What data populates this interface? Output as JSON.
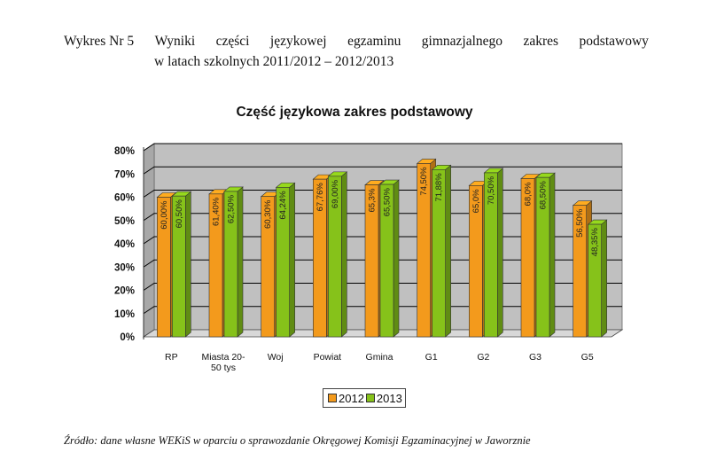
{
  "header": {
    "prefix": "Wykres Nr 5",
    "line1_words": [
      "Wyniki",
      "części",
      "językowej",
      "egzaminu",
      "gimnazjalnego",
      "zakres",
      "podstawowy"
    ],
    "line2": "w latach szkolnych 2011/2012 – 2012/2013"
  },
  "source": "Źródło: dane własne WEKiS  w oparciu o sprawozdanie Okręgowej Komisji Egzaminacyjnej w Jaworznie",
  "colors": {
    "series_2012": "#f39a1c",
    "series_2013": "#86c21a",
    "back_wall": "#c0c0c0",
    "gridline": "#000000"
  },
  "chart_data": {
    "type": "bar",
    "title": "Część językowa zakres podstawowy",
    "categories": [
      "RP",
      "Miasta 20-50 tys",
      "Woj",
      "Powiat",
      "Gmina",
      "G1",
      "G2",
      "G3",
      "G5"
    ],
    "category_lines": [
      [
        "RP"
      ],
      [
        "Miasta 20-",
        "50 tys"
      ],
      [
        "Woj"
      ],
      [
        "Powiat"
      ],
      [
        "Gmina"
      ],
      [
        "G1"
      ],
      [
        "G2"
      ],
      [
        "G3"
      ],
      [
        "G5"
      ]
    ],
    "series": [
      {
        "name": "2012",
        "values": [
          60.0,
          61.4,
          60.3,
          67.76,
          65.3,
          74.5,
          65.0,
          68.0,
          56.5
        ],
        "labels": [
          "60,00%",
          "61,40%",
          "60,30%",
          "67,76%",
          "65,3%",
          "74,50%",
          "65,0%",
          "68,0%",
          "56,50%"
        ]
      },
      {
        "name": "2013",
        "values": [
          60.5,
          62.5,
          64.24,
          69.0,
          65.5,
          71.88,
          70.5,
          68.5,
          48.35
        ],
        "labels": [
          "60,50%",
          "62,50%",
          "64,24%",
          "69,00%",
          "65,50%",
          "71,88%",
          "70,50%",
          "68,50%",
          "48,35%"
        ]
      }
    ],
    "ylim": [
      0,
      80
    ],
    "yticks": [
      "0%",
      "10%",
      "20%",
      "30%",
      "40%",
      "50%",
      "60%",
      "70%",
      "80%"
    ],
    "grid": true,
    "legend_position": "bottom"
  }
}
